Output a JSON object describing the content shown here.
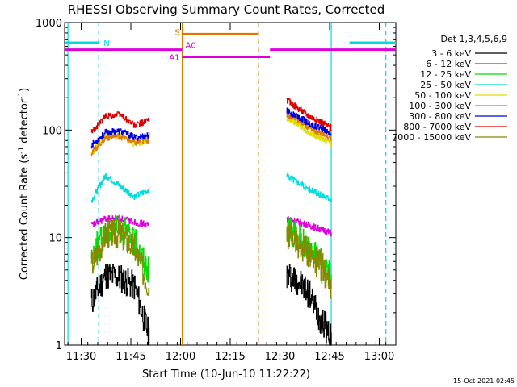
{
  "chart_data": {
    "type": "line",
    "title": "RHESSI Observing Summary Count Rates, Corrected",
    "xlabel": "Start Time (10-Jun-10 11:22:22)",
    "ylabel_main": "Corrected Count Rate (s",
    "ylabel_sup1": "-1",
    "ylabel_mid": " detector",
    "ylabel_sup2": "-1",
    "ylabel_end": ")",
    "yscale": "log",
    "ylim": [
      1,
      1000
    ],
    "xlim_min": [
      685,
      785
    ],
    "x_ticks": [
      {
        "value": 690,
        "label": "11:30"
      },
      {
        "value": 705,
        "label": "11:45"
      },
      {
        "value": 720,
        "label": "12:00"
      },
      {
        "value": 735,
        "label": "12:15"
      },
      {
        "value": 750,
        "label": "12:30"
      },
      {
        "value": 765,
        "label": "12:45"
      },
      {
        "value": 780,
        "label": "13:00"
      }
    ],
    "y_ticks": [
      {
        "value": 1,
        "label": "1"
      },
      {
        "value": 10,
        "label": "10"
      },
      {
        "value": 100,
        "label": "100"
      },
      {
        "value": 1000,
        "label": "1000"
      }
    ],
    "legend_title": "Det 1,3,4,5,6,9",
    "footer": "15-Oct-2021 02:45",
    "series": [
      {
        "name": "3 - 6 keV",
        "color": "#000000",
        "seg1": [
          2.5,
          4.5,
          4.2,
          3.5,
          1.2
        ],
        "seg2": [
          4.5,
          4.0,
          3.0,
          1.8,
          1.2
        ]
      },
      {
        "name": "6 - 12 keV",
        "color": "#dd00dd",
        "seg1": [
          13,
          15,
          15,
          14,
          13
        ],
        "seg2": [
          15,
          14,
          13,
          12,
          11
        ]
      },
      {
        "name": "12 - 25 keV",
        "color": "#00dd00",
        "seg1": [
          7,
          11,
          12,
          9,
          5
        ],
        "seg2": [
          12,
          10,
          8,
          6,
          4.5
        ]
      },
      {
        "name": "25 - 50 keV",
        "color": "#00dddd",
        "seg1": [
          22,
          38,
          30,
          24,
          28
        ],
        "seg2": [
          38,
          33,
          28,
          25,
          23
        ]
      },
      {
        "name": "50 - 100 keV",
        "color": "#dddd00",
        "seg1": [
          60,
          88,
          88,
          75,
          80
        ],
        "seg2": [
          130,
          115,
          95,
          85,
          75
        ]
      },
      {
        "name": "100 - 300 keV",
        "color": "#e07800",
        "seg1": [
          62,
          85,
          88,
          76,
          82
        ],
        "seg2": [
          140,
          125,
          105,
          95,
          85
        ]
      },
      {
        "name": "300 - 800 keV",
        "color": "#0000dd",
        "seg1": [
          72,
          95,
          98,
          85,
          90
        ],
        "seg2": [
          150,
          135,
          115,
          105,
          95
        ]
      },
      {
        "name": "800 - 7000 keV",
        "color": "#dd0000",
        "seg1": [
          95,
          135,
          140,
          110,
          125
        ],
        "seg2": [
          190,
          160,
          135,
          120,
          105
        ]
      },
      {
        "name": "7000 - 15000 keV",
        "color": "#888800",
        "seg1": [
          5.5,
          11,
          11,
          8,
          3.5
        ],
        "seg2": [
          11,
          9,
          7,
          5.5,
          3.5
        ]
      }
    ],
    "segment_times": {
      "seg1": [
        693,
        710.5
      ],
      "seg2": [
        752,
        765.5
      ]
    },
    "annotations": [
      {
        "label": "N",
        "color": "#00dddd",
        "level": 650,
        "x0": 685,
        "x1": 695.3,
        "x2": 771,
        "x3": 785
      },
      {
        "label": "S",
        "color": "#e07800",
        "level": 780,
        "x0": 720.5,
        "x1": 743.5
      },
      {
        "label": "A0",
        "color": "#dd00dd",
        "level": 560,
        "x0": 685,
        "x1": 720.5,
        "x2": 747,
        "x3": 785
      },
      {
        "label": "A1",
        "color": "#dd00dd",
        "level": 480,
        "x0": 720.5,
        "x1": 747
      }
    ],
    "vlines": [
      {
        "value": 686,
        "color": "#00dddd",
        "dash": false
      },
      {
        "value": 695.3,
        "color": "#00dddd",
        "dash": true
      },
      {
        "value": 720.5,
        "color": "#e07800",
        "dash": false
      },
      {
        "value": 743.5,
        "color": "#e07800",
        "dash": true
      },
      {
        "value": 765.5,
        "color": "#00dddd",
        "dash": false
      },
      {
        "value": 782,
        "color": "#00dddd",
        "dash": true
      }
    ]
  }
}
